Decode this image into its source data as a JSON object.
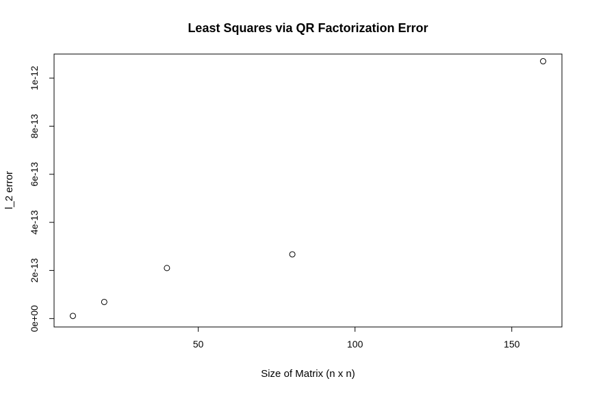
{
  "chart_data": {
    "type": "scatter",
    "title": "Least Squares via QR Factorization Error",
    "xlabel": "Size of Matrix (n x n)",
    "ylabel": "l_2 error",
    "x_ticks": [
      50,
      100,
      150
    ],
    "x_tick_labels": [
      "50",
      "100",
      "150"
    ],
    "y_ticks": [
      0,
      2e-13,
      4e-13,
      6e-13,
      8e-13,
      1e-12
    ],
    "y_tick_labels": [
      "0e+00",
      "2e-13",
      "4e-13",
      "6e-13",
      "8e-13",
      "1e-12"
    ],
    "xlim": [
      4,
      166
    ],
    "ylim": [
      -3.5e-14,
      1.1e-12
    ],
    "points": [
      {
        "x": 10,
        "y": 1.1e-14
      },
      {
        "x": 20,
        "y": 6.9e-14
      },
      {
        "x": 40,
        "y": 2.1e-13
      },
      {
        "x": 80,
        "y": 2.67e-13
      },
      {
        "x": 160,
        "y": 1.07e-12
      }
    ],
    "grid": false,
    "marker": "open-circle"
  }
}
